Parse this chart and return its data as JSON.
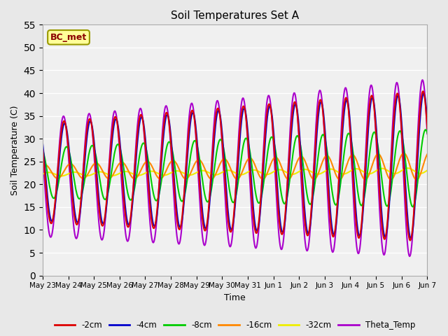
{
  "title": "Soil Temperatures Set A",
  "xlabel": "Time",
  "ylabel": "Soil Temperature (C)",
  "ylim": [
    0,
    55
  ],
  "yticks": [
    0,
    5,
    10,
    15,
    20,
    25,
    30,
    35,
    40,
    45,
    50,
    55
  ],
  "annotation": "BC_met",
  "series_colors": {
    "-2cm": "#dd0000",
    "-4cm": "#0000cc",
    "-8cm": "#00cc00",
    "-16cm": "#ff8800",
    "-32cm": "#eeee00",
    "Theta_Temp": "#aa00cc"
  },
  "date_labels": [
    "May 23",
    "May 24",
    "May 25",
    "May 26",
    "May 27",
    "May 28",
    "May 29",
    "May 30",
    "May 31",
    "Jun 1",
    "Jun 2",
    "Jun 3",
    "Jun 4",
    "Jun 5",
    "Jun 6",
    "Jun 7"
  ],
  "n_days": 15,
  "bg_color": "#e8e8e8",
  "plot_bg_color": "#f0f0f0",
  "figsize": [
    6.4,
    4.8
  ],
  "dpi": 100
}
